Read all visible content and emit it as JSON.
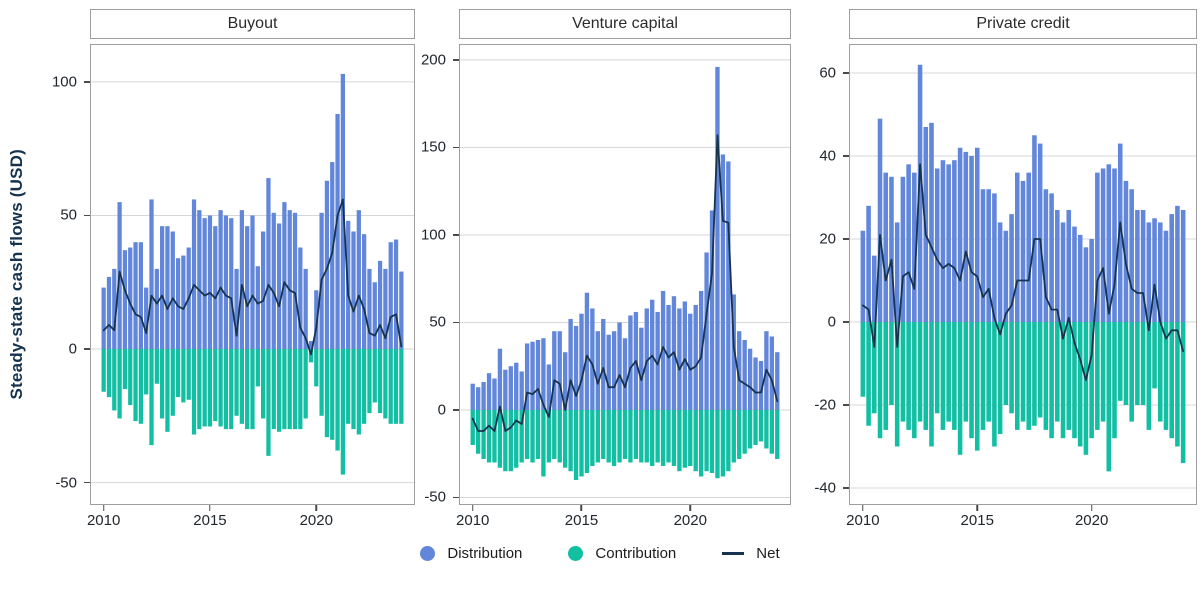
{
  "ylabel": "Steady-state cash flows (USD)",
  "colors": {
    "distribution": "#6286d9",
    "contribution": "#12bfa3",
    "net": "#16334f",
    "gridline": "#d7d7d7",
    "panel_border": "#9e9e9e",
    "tick_text": "#21272e",
    "axis_label_text": "#15324e"
  },
  "legend": [
    {
      "label": "Distribution",
      "marker": "circle",
      "color": "#6286d9"
    },
    {
      "label": "Contribution",
      "marker": "circle",
      "color": "#12bfa3"
    },
    {
      "label": "Net",
      "marker": "line",
      "color": "#16334f"
    }
  ],
  "chart_data": [
    {
      "type": "bar",
      "title": "Buyout",
      "x_start": "2010Q1",
      "x_freq": "quarterly",
      "n_points": 57,
      "xticks": [
        {
          "label": "2010",
          "index": 0
        },
        {
          "label": "2015",
          "index": 20
        },
        {
          "label": "2020",
          "index": 40
        }
      ],
      "yticks": [
        100,
        50,
        0,
        -50
      ],
      "ylim": [
        -58.4,
        114.2
      ],
      "grid": "horizontal",
      "series": [
        {
          "name": "Distribution",
          "values": [
            23,
            27,
            30,
            55,
            37,
            38,
            40,
            40,
            23,
            56,
            30,
            46,
            46,
            44,
            34,
            35,
            38,
            56,
            52,
            49,
            50,
            46,
            52,
            50,
            49,
            30,
            52,
            46,
            50,
            31,
            44,
            64,
            51,
            47,
            55,
            52,
            51,
            38,
            30,
            3,
            22,
            51,
            63,
            70,
            88,
            103,
            48,
            44,
            52,
            43,
            30,
            25,
            33,
            30,
            40,
            41,
            29
          ]
        },
        {
          "name": "Contribution",
          "values": [
            -16,
            -18,
            -23,
            -26,
            -15,
            -21,
            -27,
            -28,
            -17,
            -36,
            -13,
            -26,
            -31,
            -25,
            -18,
            -20,
            -19,
            -32,
            -30,
            -29,
            -29,
            -27,
            -29,
            -30,
            -30,
            -25,
            -28,
            -30,
            -30,
            -14,
            -26,
            -40,
            -30,
            -31,
            -30,
            -30,
            -30,
            -30,
            -26,
            -5,
            -14,
            -25,
            -33,
            -34,
            -38,
            -47,
            -28,
            -30,
            -32,
            -28,
            -24,
            -20,
            -24,
            -26,
            -28,
            -28,
            -28
          ]
        },
        {
          "name": "Net",
          "values": [
            7,
            9,
            7,
            29,
            22,
            17,
            13,
            12,
            6,
            20,
            17,
            20,
            15,
            19,
            16,
            15,
            19,
            24,
            22,
            20,
            21,
            19,
            23,
            20,
            19,
            5,
            24,
            16,
            20,
            17,
            18,
            24,
            21,
            16,
            25,
            22,
            21,
            8,
            4,
            -2,
            8,
            26,
            30,
            36,
            50,
            56,
            20,
            14,
            20,
            15,
            6,
            5,
            9,
            4,
            12,
            13,
            1
          ]
        }
      ]
    },
    {
      "type": "bar",
      "title": "Venture capital",
      "x_start": "2010Q1",
      "x_freq": "quarterly",
      "n_points": 57,
      "xticks": [
        {
          "label": "2010",
          "index": 0
        },
        {
          "label": "2015",
          "index": 20
        },
        {
          "label": "2020",
          "index": 40
        }
      ],
      "yticks": [
        200,
        150,
        100,
        50,
        0,
        -50
      ],
      "ylim": [
        -54.3,
        209.1
      ],
      "grid": "horizontal",
      "series": [
        {
          "name": "Distribution",
          "values": [
            15,
            13,
            16,
            21,
            18,
            35,
            23,
            25,
            27,
            22,
            38,
            39,
            40,
            41,
            26,
            45,
            45,
            33,
            52,
            48,
            55,
            67,
            58,
            45,
            52,
            43,
            45,
            50,
            41,
            54,
            56,
            47,
            58,
            63,
            56,
            68,
            60,
            65,
            58,
            62,
            55,
            60,
            68,
            90,
            114,
            196,
            146,
            142,
            66,
            45,
            40,
            35,
            30,
            28,
            45,
            42,
            33
          ]
        },
        {
          "name": "Contribution",
          "values": [
            -20,
            -25,
            -28,
            -30,
            -30,
            -33,
            -35,
            -35,
            -33,
            -30,
            -28,
            -30,
            -28,
            -38,
            -30,
            -28,
            -30,
            -33,
            -35,
            -40,
            -38,
            -36,
            -32,
            -30,
            -28,
            -30,
            -32,
            -30,
            -28,
            -30,
            -28,
            -30,
            -30,
            -32,
            -30,
            -32,
            -30,
            -32,
            -35,
            -33,
            -32,
            -35,
            -38,
            -35,
            -36,
            -39,
            -38,
            -35,
            -30,
            -28,
            -25,
            -22,
            -20,
            -18,
            -22,
            -25,
            -28
          ]
        },
        {
          "name": "Net",
          "values": [
            -5,
            -12,
            -12,
            -9,
            -12,
            2,
            -12,
            -10,
            -6,
            -8,
            10,
            9,
            12,
            3,
            -4,
            17,
            15,
            0,
            17,
            8,
            17,
            31,
            26,
            15,
            24,
            13,
            13,
            20,
            13,
            24,
            28,
            17,
            28,
            31,
            26,
            36,
            30,
            33,
            23,
            29,
            23,
            25,
            30,
            55,
            78,
            157,
            108,
            107,
            36,
            17,
            15,
            13,
            10,
            10,
            23,
            17,
            5
          ]
        }
      ]
    },
    {
      "type": "bar",
      "title": "Private credit",
      "x_start": "2010Q1",
      "x_freq": "quarterly",
      "n_points": 57,
      "xticks": [
        {
          "label": "2010",
          "index": 0
        },
        {
          "label": "2015",
          "index": 20
        },
        {
          "label": "2020",
          "index": 40
        }
      ],
      "yticks": [
        60,
        40,
        20,
        0,
        -20,
        -40
      ],
      "ylim": [
        -44.1,
        67.0
      ],
      "grid": "horizontal",
      "series": [
        {
          "name": "Distribution",
          "values": [
            22,
            28,
            16,
            49,
            36,
            35,
            24,
            35,
            38,
            36,
            62,
            47,
            48,
            37,
            39,
            38,
            39,
            42,
            41,
            40,
            42,
            32,
            32,
            31,
            24,
            22,
            26,
            36,
            34,
            36,
            45,
            43,
            32,
            31,
            27,
            24,
            27,
            23,
            21,
            18,
            20,
            36,
            37,
            38,
            37,
            43,
            34,
            32,
            27,
            27,
            24,
            25,
            24,
            22,
            26,
            28,
            27
          ]
        },
        {
          "name": "Contribution",
          "values": [
            -18,
            -25,
            -22,
            -28,
            -26,
            -20,
            -30,
            -24,
            -26,
            -28,
            -24,
            -26,
            -30,
            -22,
            -26,
            -24,
            -26,
            -32,
            -24,
            -28,
            -31,
            -26,
            -24,
            -30,
            -27,
            -20,
            -22,
            -26,
            -24,
            -26,
            -25,
            -23,
            -26,
            -28,
            -24,
            -28,
            -26,
            -28,
            -30,
            -32,
            -28,
            -26,
            -24,
            -36,
            -28,
            -19,
            -20,
            -24,
            -20,
            -20,
            -26,
            -16,
            -24,
            -26,
            -28,
            -30,
            -34
          ]
        },
        {
          "name": "Net",
          "values": [
            4,
            3,
            -6,
            21,
            10,
            15,
            -6,
            11,
            12,
            8,
            38,
            21,
            18,
            15,
            13,
            14,
            13,
            10,
            17,
            12,
            11,
            6,
            8,
            1,
            -3,
            2,
            4,
            10,
            10,
            10,
            20,
            20,
            6,
            3,
            3,
            -4,
            1,
            -5,
            -9,
            -14,
            -8,
            10,
            13,
            2,
            9,
            24,
            14,
            8,
            7,
            7,
            -2,
            9,
            0,
            -4,
            -2,
            -2,
            -7
          ]
        }
      ]
    }
  ]
}
